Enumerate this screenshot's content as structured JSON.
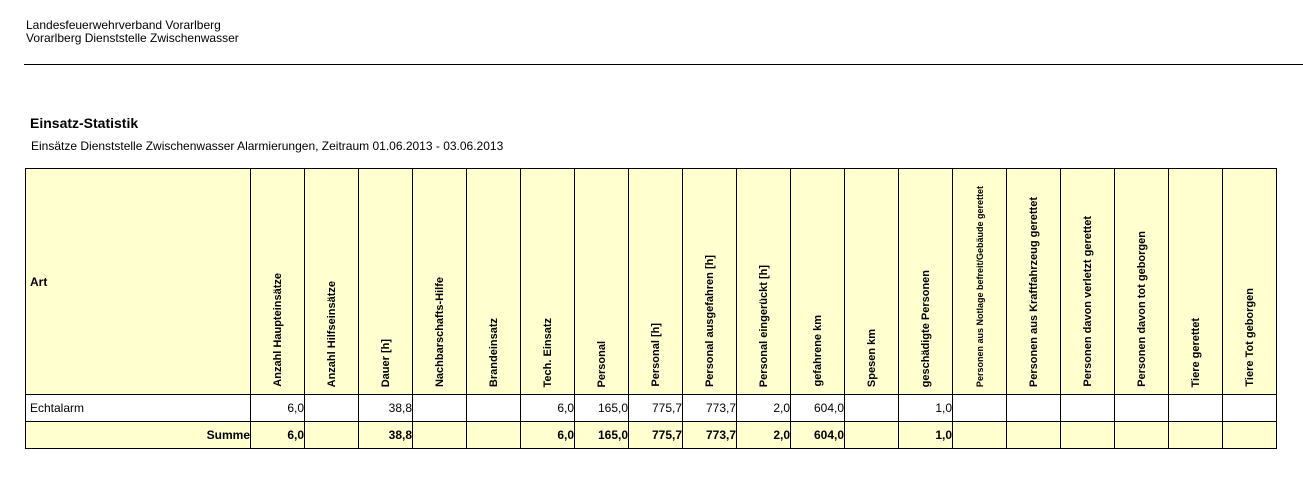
{
  "header": {
    "org_line1": "Landesfeuerwehrverband Vorarlberg",
    "org_line2": "Vorarlberg Dienststelle Zwischenwasser"
  },
  "report": {
    "title": "Einsatz-Statistik",
    "subtitle": "Einsätze Dienststelle Zwischenwasser Alarmierungen, Zeitraum 01.06.2013 - 03.06.2013"
  },
  "table": {
    "art_header": "Art",
    "columns": [
      "Anzahl Haupteinsätze",
      "Anzahl Hilfseinsätze",
      "Dauer [h]",
      "Nachbarschafts-Hilfe",
      "Brandeinsatz",
      "Tech. Einsatz",
      "Personal",
      "Personal [h]",
      "Personal ausgefahren [h]",
      "Personal eingerückt [h]",
      "gefahrene km",
      "Spesen km",
      "geschädigte Personen",
      "Personen aus Notlage befreit/Gebäude gerettet",
      "Personen aus Kraftfahrzeug gerettet",
      "Personen davon verletzt gerettet",
      "Personen davon tot geborgen",
      "Tiere gerettet",
      "Tiere Tot geborgen"
    ],
    "rows": [
      {
        "label": "Echtalarm",
        "values": [
          "6,0",
          "",
          "38,8",
          "",
          "",
          "6,0",
          "165,0",
          "775,7",
          "773,7",
          "2,0",
          "604,0",
          "",
          "1,0",
          "",
          "",
          "",
          "",
          "",
          ""
        ]
      }
    ],
    "sum": {
      "label": "Summe",
      "values": [
        "6,0",
        "",
        "38,8",
        "",
        "",
        "6,0",
        "165,0",
        "775,7",
        "773,7",
        "2,0",
        "604,0",
        "",
        "1,0",
        "",
        "",
        "",
        "",
        "",
        ""
      ]
    }
  },
  "colors": {
    "header_fill": "#ffffd0",
    "border": "#000000"
  }
}
